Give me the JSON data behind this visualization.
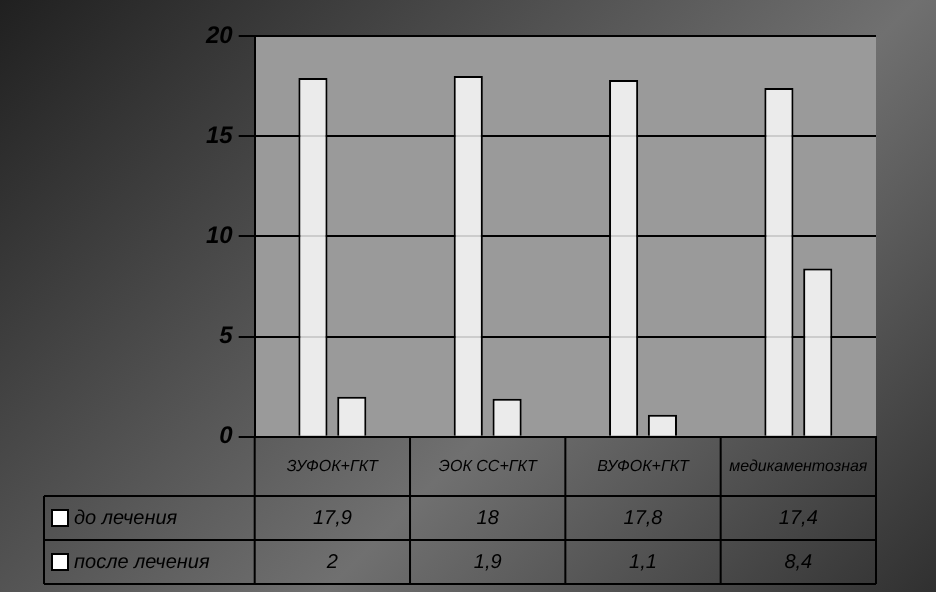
{
  "chart_data": {
    "type": "bar",
    "categories": [
      "ЗУФОК+ГКТ",
      "ЭОК СС+ГКТ",
      "ВУФОК+ГКТ",
      "медикаментозная"
    ],
    "series": [
      {
        "name": "до лечения",
        "color": "#ffffff",
        "values": [
          17.9,
          18,
          17.8,
          17.4
        ]
      },
      {
        "name": "после лечения",
        "color": "#ffffff",
        "values": [
          2,
          1.9,
          1.1,
          8.4
        ]
      }
    ],
    "value_labels": [
      [
        "17,9",
        "18",
        "17,8",
        "17,4"
      ],
      [
        "2",
        "1,9",
        "1,1",
        "8,4"
      ]
    ],
    "ylim": [
      0,
      20
    ],
    "yticks": [
      0,
      5,
      10,
      15,
      20
    ],
    "grid": "y",
    "legend": "bottom left"
  }
}
